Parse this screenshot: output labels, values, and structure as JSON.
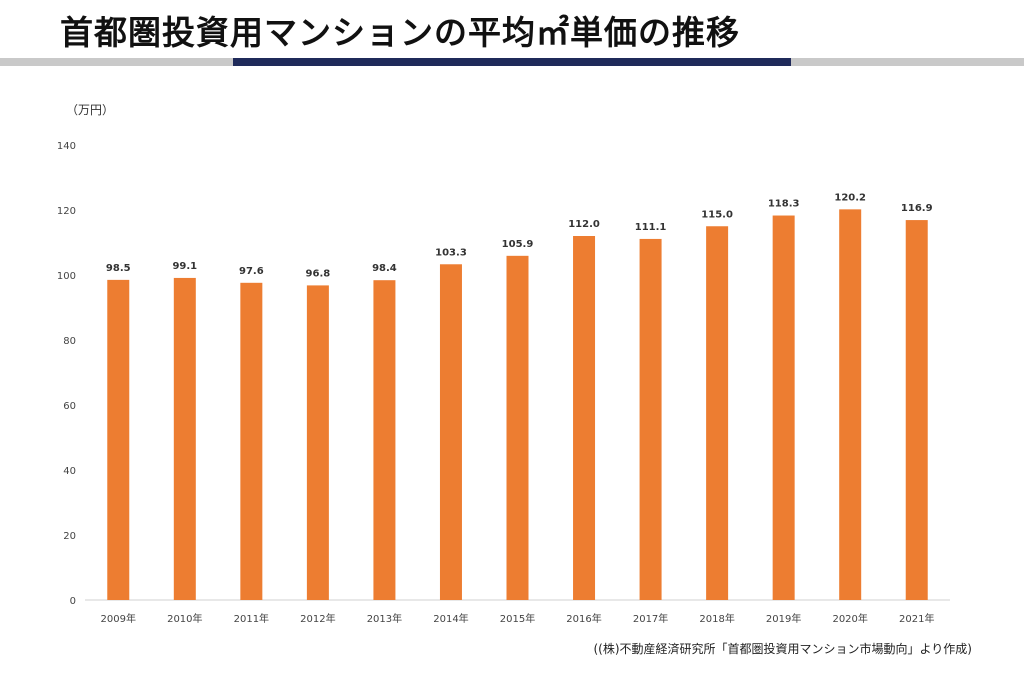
{
  "page": {
    "title": "首都圏投資用マンションの平均㎡単価の推移",
    "source": "((株)不動産経済研究所「首都圏投資用マンション市場動向」より作成)"
  },
  "colors": {
    "bar": "#ed7d31",
    "title_rule_grey": "#c9c9c9",
    "title_rule_navy": "#1f2a5a",
    "axis": "#d0d0d0"
  },
  "chart_data": {
    "type": "bar",
    "unit_label": "（万円）",
    "categories": [
      "2009年",
      "2010年",
      "2011年",
      "2012年",
      "2013年",
      "2014年",
      "2015年",
      "2016年",
      "2017年",
      "2018年",
      "2019年",
      "2020年",
      "2021年"
    ],
    "values": [
      98.5,
      99.1,
      97.6,
      96.8,
      98.4,
      103.3,
      105.9,
      112.0,
      111.1,
      115.0,
      118.3,
      120.2,
      116.9
    ],
    "data_labels": [
      "98.5",
      "99.1",
      "97.6",
      "96.8",
      "98.4",
      "103.3",
      "105.9",
      "112.0",
      "111.1",
      "115.0",
      "118.3",
      "120.2",
      "116.9"
    ],
    "ylim": [
      0,
      140
    ],
    "yticks": [
      0,
      20,
      40,
      60,
      80,
      100,
      120,
      140
    ],
    "grid": false,
    "legend": "none"
  }
}
